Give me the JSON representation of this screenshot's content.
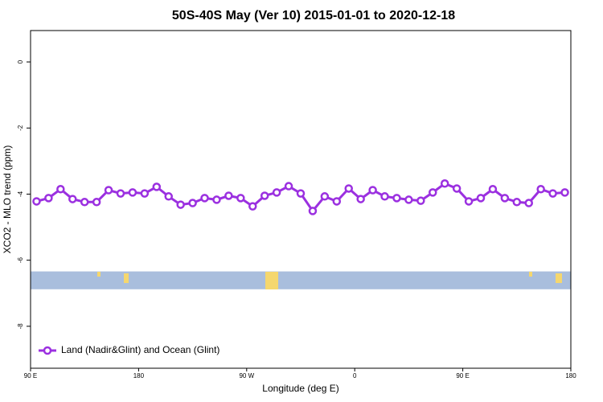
{
  "chart_data": {
    "type": "line",
    "title": "50S-40S May (Ver 10)   2015-01-01 to 2020-12-18",
    "x_label": "Longitude (deg E)",
    "y_label": "XCO2 - MLO trend (ppm)",
    "x": [
      95,
      105,
      115,
      125,
      135,
      145,
      155,
      165,
      175,
      185,
      195,
      205,
      215,
      225,
      235,
      245,
      255,
      265,
      275,
      285,
      295,
      305,
      315,
      325,
      335,
      345,
      355,
      365,
      375,
      385,
      395,
      405,
      415,
      425,
      435,
      445,
      455,
      465,
      475,
      485,
      495,
      505,
      515,
      525,
      535
    ],
    "series": [
      {
        "name": "Land (Nadir&Glint) and Ocean (Glint)",
        "color": "#9b30e0",
        "values": [
          -4.22,
          -4.12,
          -3.85,
          -4.15,
          -4.24,
          -4.24,
          -3.88,
          -3.98,
          -3.95,
          -3.98,
          -3.78,
          -4.07,
          -4.32,
          -4.27,
          -4.12,
          -4.17,
          -4.05,
          -4.12,
          -4.37,
          -4.05,
          -3.95,
          -3.76,
          -3.98,
          -4.51,
          -4.07,
          -4.22,
          -3.83,
          -4.15,
          -3.88,
          -4.07,
          -4.12,
          -4.17,
          -4.2,
          -3.95,
          -3.68,
          -3.83,
          -4.22,
          -4.12,
          -3.85,
          -4.12,
          -4.24,
          -4.27,
          -3.85,
          -3.98,
          -3.95
        ]
      }
    ],
    "xlim": [
      90,
      540
    ],
    "xticks": [
      {
        "value": 90,
        "label": "90 E"
      },
      180,
      {
        "value": 270,
        "label": "90 W"
      },
      {
        "value": 360,
        "label": "0"
      },
      {
        "value": 450,
        "label": "90 E"
      },
      {
        "value": 540,
        "label": "180"
      }
    ],
    "ylim": [
      -9.27,
      0.95
    ],
    "yticks": [
      0,
      -2,
      -4,
      -6,
      -8
    ],
    "band": [
      -6.34,
      -6.88
    ],
    "legend": "bottom-left"
  }
}
